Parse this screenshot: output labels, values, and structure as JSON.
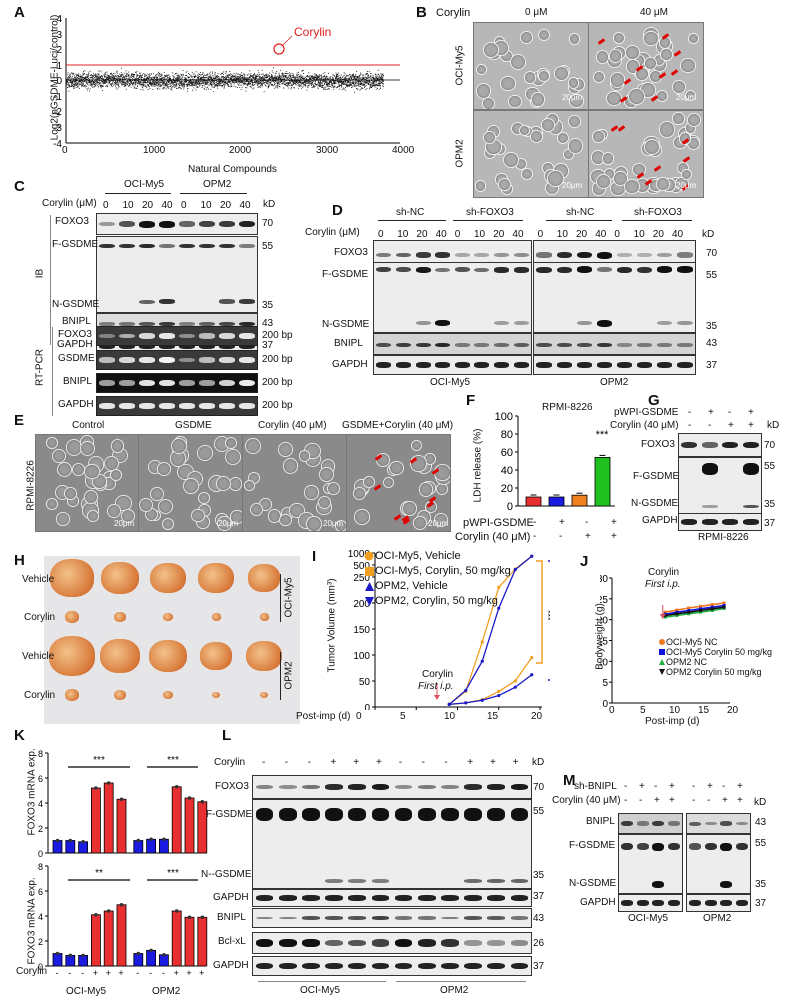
{
  "panels": {
    "A": {
      "label": "A",
      "ylabel": "Log2(pGSDME-Luci/control)",
      "xlabel": "Natural Compounds",
      "yticks": [
        "4",
        "3",
        "2",
        "1",
        "0",
        "-1",
        "-2",
        "-3",
        "-4"
      ],
      "xticks": [
        "0",
        "1000",
        "2000",
        "3000",
        "4000"
      ],
      "annotation": "Corylin",
      "threshold_color": "#e02020"
    },
    "B": {
      "label": "B",
      "treatment_label": "Corylin",
      "columns": [
        "0 μM",
        "40 μM"
      ],
      "rows": [
        "OCI-My5",
        "OPM2"
      ],
      "scale_bar": "20μm"
    },
    "C": {
      "label": "C",
      "cell_lines": [
        "OCI-My5",
        "OPM2"
      ],
      "dose_label": "Corylin (μM)",
      "doses": [
        "0",
        "10",
        "20",
        "40",
        "0",
        "10",
        "20",
        "40"
      ],
      "kd_label": "kD",
      "ib_label": "IB",
      "ib_rows": [
        {
          "name": "FOXO3",
          "kd": "70"
        },
        {
          "name": "F-GSDME",
          "kd": "55"
        },
        {
          "name": "N-GSDME",
          "kd": "35"
        },
        {
          "name": "BNIPL",
          "kd": "43"
        },
        {
          "name": "GAPDH",
          "kd": "37"
        }
      ],
      "rtpcr_label": "RT-PCR",
      "rtpcr_rows": [
        {
          "name": "FOXO3",
          "size": "200 bp"
        },
        {
          "name": "GSDME",
          "size": "200 bp"
        },
        {
          "name": "BNIPL",
          "size": "200 bp"
        },
        {
          "name": "GAPDH",
          "size": "200 bp"
        }
      ]
    },
    "D": {
      "label": "D",
      "groups": [
        "sh-NC",
        "sh-FOXO3",
        "sh-NC",
        "sh-FOXO3"
      ],
      "dose_label": "Corylin (μM)",
      "doses": [
        "0",
        "10",
        "20",
        "40",
        "0",
        "10",
        "20",
        "40",
        "0",
        "10",
        "20",
        "40",
        "0",
        "10",
        "20",
        "40"
      ],
      "kd_label": "kD",
      "rows": [
        {
          "name": "FOXO3",
          "kd": "70"
        },
        {
          "name": "F-GSDME",
          "kd": "55"
        },
        {
          "name": "N-GSDME",
          "kd": "35"
        },
        {
          "name": "BNIPL",
          "kd": "43"
        },
        {
          "name": "GAPDH",
          "kd": "37"
        }
      ],
      "cell_lines": [
        "OCI-My5",
        "OPM2"
      ]
    },
    "E": {
      "label": "E",
      "row_label": "RPMI-8226",
      "columns": [
        "Control",
        "GSDME",
        "Corylin (40 μM)",
        "GSDME+Corylin (40 μM)"
      ],
      "scale_bar": "20μm"
    },
    "F": {
      "label": "F",
      "title": "RPMI-8226",
      "ylabel": "LDH release (%)",
      "yticks": [
        "100",
        "80",
        "60",
        "40",
        "20",
        "0"
      ],
      "row1_label": "pWPI-GSDME",
      "row1": [
        "-",
        "+",
        "-",
        "+"
      ],
      "row2_label": "Corylin (40 μM)",
      "row2": [
        "-",
        "-",
        "+",
        "+"
      ],
      "significance": "***"
    },
    "G": {
      "label": "G",
      "row1_label": "pWPI-GSDME",
      "row1": [
        "-",
        "+",
        "-",
        "+"
      ],
      "row2_label": "Corylin (40 μM)",
      "row2": [
        "-",
        "-",
        "+",
        "+"
      ],
      "kd_label": "kD",
      "rows": [
        {
          "name": "FOXO3",
          "kd": "70"
        },
        {
          "name": "F-GSDME",
          "kd": "55"
        },
        {
          "name": "N-GSDME",
          "kd": "35"
        },
        {
          "name": "GAPDH",
          "kd": "37"
        }
      ],
      "cell_line": "RPMI-8226"
    },
    "H": {
      "label": "H",
      "rows": [
        "Vehicle",
        "Corylin",
        "Vehicle",
        "Corylin"
      ],
      "groups": [
        "OCI-My5",
        "OPM2"
      ]
    },
    "I": {
      "label": "I",
      "ylabel": "Tumor Volume (mm³)",
      "xlabel": "Post-imp (d)",
      "yticks_upper": [
        "1000",
        "500",
        "250"
      ],
      "yticks_lower": [
        "200",
        "150",
        "100",
        "50",
        "0"
      ],
      "xticks": [
        "0",
        "5",
        "10",
        "15",
        "20"
      ],
      "legend": [
        {
          "name": "OCI-My5, Vehicle",
          "color": "#f0a020",
          "marker": "circle"
        },
        {
          "name": "OCI-My5, Corylin, 50 mg/kg",
          "color": "#f0a020",
          "marker": "square"
        },
        {
          "name": "OPM2, Vehicle",
          "color": "#1a1ac8",
          "marker": "triangle-up"
        },
        {
          "name": "OPM2, Corylin, 50 mg/kg",
          "color": "#1a1ac8",
          "marker": "triangle-down"
        }
      ],
      "annotation_line1": "Corylin",
      "annotation_line2": "First i.p.",
      "significance": "***"
    },
    "J": {
      "label": "J",
      "ylabel": "Bodyweight (g)",
      "xlabel": "Post-imp (d)",
      "yticks": [
        "30",
        "25",
        "20",
        "15",
        "10",
        "5",
        "0"
      ],
      "xticks": [
        "0",
        "5",
        "10",
        "15",
        "20"
      ],
      "annotation_line1": "Corylin",
      "annotation_line2": "First i.p.",
      "legend": [
        {
          "name": "OCI-My5 NC",
          "color": "#f07820"
        },
        {
          "name": "OCI-My5 Corylin 50 mg/kg",
          "color": "#1010e0"
        },
        {
          "name": "OPM2 NC",
          "color": "#20b040"
        },
        {
          "name": "OPM2 Corylin 50 mg/kg",
          "color": "#111111"
        }
      ]
    },
    "K": {
      "label": "K",
      "ylabel": "FOXO3 mRNA exp.",
      "yticks": [
        "8",
        "6",
        "4",
        "2",
        "0"
      ],
      "treatment_label": "Corylin",
      "treatments": [
        "-",
        "-",
        "-",
        "+",
        "+",
        "+",
        "-",
        "-",
        "-",
        "+",
        "+",
        "+"
      ],
      "cell_lines": [
        "OCI-My5",
        "OPM2"
      ],
      "sig_top": [
        "***",
        "***"
      ],
      "sig_bottom": [
        "**",
        "***"
      ]
    },
    "L": {
      "label": "L",
      "treatment_label": "Corylin",
      "treatments": [
        "-",
        "-",
        "-",
        "+",
        "+",
        "+",
        "-",
        "-",
        "-",
        "+",
        "+",
        "+"
      ],
      "kd_label": "kD",
      "rows": [
        {
          "name": "FOXO3",
          "kd": "70"
        },
        {
          "name": "F-GSDME",
          "kd": "55"
        },
        {
          "name": "N--GSDME",
          "kd": "35"
        },
        {
          "name": "GAPDH",
          "kd": "37"
        },
        {
          "name": "BNIPL",
          "kd": "43"
        },
        {
          "name": "Bcl-xL",
          "kd": "26"
        },
        {
          "name": "GAPDH",
          "kd": "37"
        }
      ],
      "cell_lines": [
        "OCI-My5",
        "OPM2"
      ]
    },
    "M": {
      "label": "M",
      "row1_label": "sh-BNIPL",
      "row1": [
        "-",
        "+",
        "-",
        "+",
        "-",
        "+",
        "-",
        "+"
      ],
      "row2_label": "Corylin (40 μM)",
      "row2": [
        "-",
        "-",
        "+",
        "+",
        "-",
        "-",
        "+",
        "+"
      ],
      "kd_label": "kD",
      "rows": [
        {
          "name": "BNIPL",
          "kd": "43"
        },
        {
          "name": "F-GSDME",
          "kd": "55"
        },
        {
          "name": "N-GSDME",
          "kd": "35"
        },
        {
          "name": "GAPDH",
          "kd": "37"
        }
      ],
      "cell_lines": [
        "OCI-My5",
        "OPM2"
      ]
    }
  },
  "chart_data": [
    {
      "panel": "A",
      "type": "scatter",
      "title": "",
      "xlabel": "Natural Compounds",
      "ylabel": "Log2(pGSDME-Luci/control)",
      "xlim": [
        0,
        4000
      ],
      "ylim": [
        -4,
        4
      ],
      "n_points_approx": 3800,
      "reference_lines": [
        {
          "y": 1,
          "color": "#e02020"
        },
        {
          "y": 0,
          "color": "#000000"
        }
      ],
      "highlight": {
        "name": "Corylin",
        "x": 2420,
        "y": 2.0
      }
    },
    {
      "panel": "F",
      "type": "bar",
      "title": "RPMI-8226",
      "ylabel": "LDH release (%)",
      "ylim": [
        0,
        100
      ],
      "categories": [
        "-/-",
        "+/-",
        "-/+",
        "+/+"
      ],
      "values": [
        10,
        10,
        12,
        54
      ],
      "colors": [
        "#e83030",
        "#1a1ae0",
        "#f08020",
        "#20c020"
      ],
      "annotations": [
        {
          "category": "+/+",
          "text": "***"
        }
      ]
    },
    {
      "panel": "I",
      "type": "line",
      "xlabel": "Post-imp (d)",
      "ylabel": "Tumor Volume (mm³)",
      "x": [
        9,
        11,
        13,
        15,
        17,
        19
      ],
      "series": [
        {
          "name": "OCI-My5, Vehicle",
          "values": [
            5,
            30,
            125,
            230,
            500,
            900
          ]
        },
        {
          "name": "OCI-My5, Corylin, 50 mg/kg",
          "values": [
            5,
            8,
            14,
            30,
            50,
            95
          ]
        },
        {
          "name": "OPM2, Vehicle",
          "values": [
            5,
            32,
            88,
            190,
            480,
            900
          ]
        },
        {
          "name": "OPM2, Corylin, 50 mg/kg",
          "values": [
            5,
            8,
            13,
            22,
            38,
            62
          ]
        }
      ],
      "xlim": [
        0,
        20
      ],
      "ylim_broken": [
        [
          0,
          250
        ],
        [
          250,
          1000
        ]
      ]
    },
    {
      "panel": "J",
      "type": "line",
      "xlabel": "Post-imp (d)",
      "ylabel": "Bodyweight (g)",
      "x": [
        9,
        11,
        13,
        15,
        17,
        19
      ],
      "series": [
        {
          "name": "OCI-My5 NC",
          "values": [
            21.8,
            22.3,
            22.8,
            23.2,
            23.6,
            24.0
          ]
        },
        {
          "name": "OCI-My5 Corylin 50 mg/kg",
          "values": [
            21.3,
            21.8,
            22.2,
            22.6,
            23.0,
            23.4
          ]
        },
        {
          "name": "OPM2 NC",
          "values": [
            20.6,
            21.0,
            21.4,
            21.8,
            22.2,
            22.7
          ]
        },
        {
          "name": "OPM2 Corylin 50 mg/kg",
          "values": [
            21.0,
            21.4,
            21.8,
            22.2,
            22.6,
            23.0
          ]
        }
      ],
      "xlim": [
        0,
        20
      ],
      "ylim": [
        0,
        30
      ]
    },
    {
      "panel": "K-top",
      "type": "bar",
      "ylabel": "FOXO3 mRNA exp.",
      "ylim": [
        0,
        8
      ],
      "categories": [
        "OCI-My5 -",
        "OCI-My5 -",
        "OCI-My5 -",
        "OCI-My5 +",
        "OCI-My5 +",
        "OCI-My5 +",
        "OPM2 -",
        "OPM2 -",
        "OPM2 -",
        "OPM2 +",
        "OPM2 +",
        "OPM2 +"
      ],
      "values": [
        1.0,
        1.0,
        0.9,
        5.2,
        5.6,
        4.3,
        1.0,
        1.1,
        1.1,
        5.3,
        4.4,
        4.1
      ],
      "colors": [
        "#1a1ae0",
        "#1a1ae0",
        "#1a1ae0",
        "#e83030",
        "#e83030",
        "#e83030",
        "#1a1ae0",
        "#1a1ae0",
        "#1a1ae0",
        "#e83030",
        "#e83030",
        "#e83030"
      ]
    },
    {
      "panel": "K-bottom",
      "type": "bar",
      "ylabel": "FOXO3 mRNA exp.",
      "ylim": [
        0,
        8
      ],
      "categories": [
        "OCI-My5 -",
        "OCI-My5 -",
        "OCI-My5 -",
        "OCI-My5 +",
        "OCI-My5 +",
        "OCI-My5 +",
        "OPM2 -",
        "OPM2 -",
        "OPM2 -",
        "OPM2 +",
        "OPM2 +",
        "OPM2 +"
      ],
      "values": [
        1.0,
        0.85,
        0.85,
        4.1,
        4.4,
        4.9,
        1.0,
        1.25,
        0.9,
        4.4,
        3.9,
        3.9
      ],
      "colors": [
        "#1a1ae0",
        "#1a1ae0",
        "#1a1ae0",
        "#e83030",
        "#e83030",
        "#e83030",
        "#1a1ae0",
        "#1a1ae0",
        "#1a1ae0",
        "#e83030",
        "#e83030",
        "#e83030"
      ]
    }
  ]
}
